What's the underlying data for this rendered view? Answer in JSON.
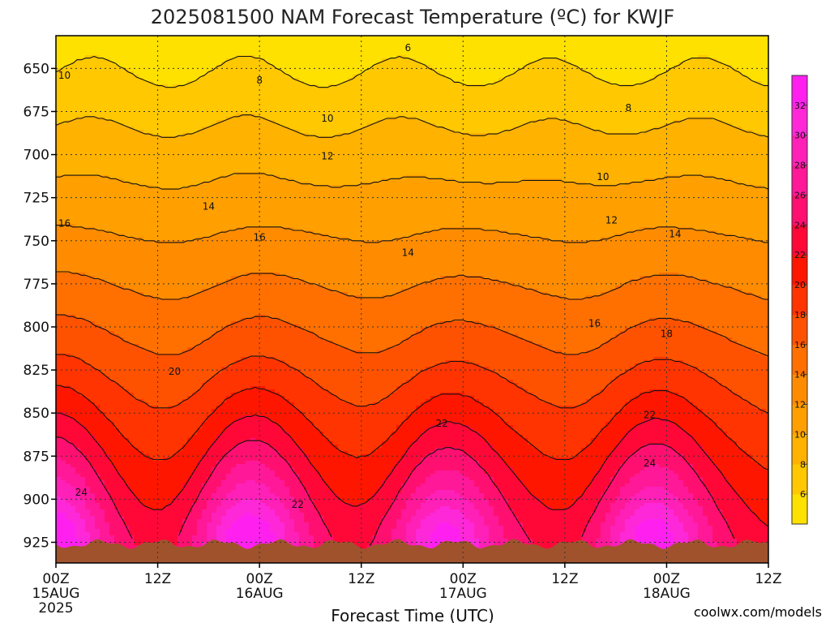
{
  "chart_data": {
    "type": "heatmap",
    "title": "2025081500 NAM Forecast Temperature (ºC) for KWJF",
    "xlabel": "Forecast Time (UTC)",
    "ylabel": "",
    "credit": "coolwx.com/models",
    "y_axis": {
      "ticks": [
        650,
        675,
        700,
        725,
        750,
        775,
        800,
        825,
        850,
        875,
        900,
        925
      ],
      "range": [
        631,
        937
      ],
      "inverted": true
    },
    "x_axis": {
      "range_hours": [
        0,
        84
      ],
      "ticks": [
        {
          "hour": 0,
          "label": "00Z",
          "date": "15AUG",
          "year": "2025"
        },
        {
          "hour": 12,
          "label": "12Z"
        },
        {
          "hour": 24,
          "label": "00Z",
          "date": "16AUG"
        },
        {
          "hour": 36,
          "label": "12Z"
        },
        {
          "hour": 48,
          "label": "00Z",
          "date": "17AUG"
        },
        {
          "hour": 60,
          "label": "12Z"
        },
        {
          "hour": 72,
          "label": "00Z",
          "date": "18AUG"
        },
        {
          "hour": 84,
          "label": "12Z"
        }
      ]
    },
    "colorbar": {
      "labels": [
        6,
        8,
        10,
        12,
        14,
        16,
        18,
        20,
        22,
        24,
        26,
        28,
        30,
        32
      ],
      "levels": [
        4,
        6,
        8,
        10,
        12,
        14,
        16,
        18,
        20,
        22,
        24,
        26,
        28,
        30,
        32,
        34
      ],
      "colors": [
        "#ffe100",
        "#ffc800",
        "#ffb200",
        "#ffa000",
        "#ff8c00",
        "#ff7000",
        "#ff5200",
        "#ff3400",
        "#ff1600",
        "#ff0838",
        "#ff1070",
        "#ff1898",
        "#ff20b8",
        "#ff28d8",
        "#ff20f0"
      ]
    },
    "grid": true,
    "contour_labels": [
      {
        "value": 6,
        "hour": 41.5,
        "p": 638
      },
      {
        "value": 8,
        "hour": 24.0,
        "p": 657
      },
      {
        "value": 8,
        "hour": 67.5,
        "p": 673
      },
      {
        "value": 10,
        "hour": 1.0,
        "p": 654
      },
      {
        "value": 10,
        "hour": 32.0,
        "p": 679
      },
      {
        "value": 10,
        "hour": 64.5,
        "p": 713
      },
      {
        "value": 12,
        "hour": 32.0,
        "p": 701
      },
      {
        "value": 12,
        "hour": 65.5,
        "p": 738
      },
      {
        "value": 14,
        "hour": 18.0,
        "p": 730
      },
      {
        "value": 14,
        "hour": 41.5,
        "p": 757
      },
      {
        "value": 14,
        "hour": 73.0,
        "p": 746
      },
      {
        "value": 16,
        "hour": 1.0,
        "p": 740
      },
      {
        "value": 16,
        "hour": 24.0,
        "p": 748
      },
      {
        "value": 16,
        "hour": 63.5,
        "p": 798
      },
      {
        "value": 18,
        "hour": 72.0,
        "p": 804
      },
      {
        "value": 20,
        "hour": 14.0,
        "p": 826
      },
      {
        "value": 22,
        "hour": 45.5,
        "p": 856
      },
      {
        "value": 22,
        "hour": 70.0,
        "p": 851
      },
      {
        "value": 22,
        "hour": 28.5,
        "p": 903
      },
      {
        "value": 24,
        "hour": 3.0,
        "p": 896
      },
      {
        "value": 24,
        "hour": 70.0,
        "p": 879
      }
    ]
  }
}
